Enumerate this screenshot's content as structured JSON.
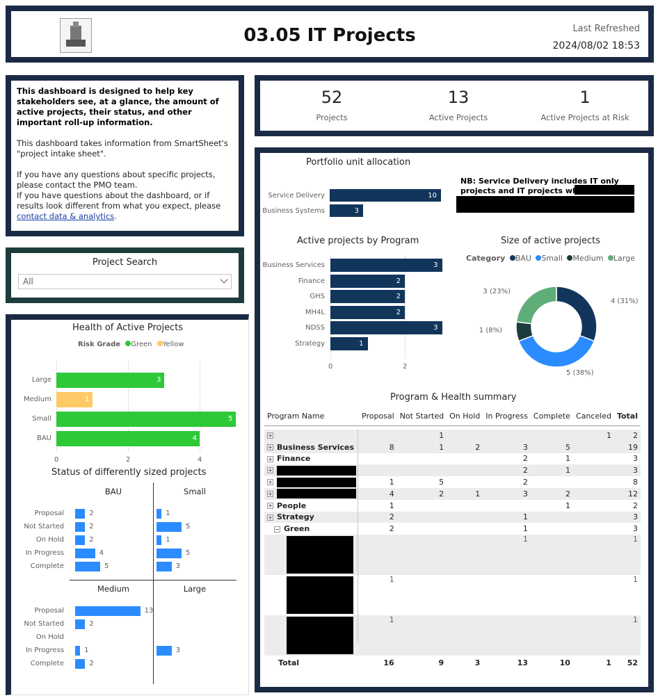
{
  "header": {
    "title": "03.05 IT Projects",
    "last_refreshed_label": "Last Refreshed",
    "last_refreshed_value": "2024/08/02 18:53"
  },
  "info": {
    "bold_text": "This dashboard is designed to help key stakeholders see, at a glance, the amount of active projects, their status, and other important roll-up information.",
    "source_text": "This dashboard takes information from SmartSheet's \"project intake sheet\".",
    "questions_text_1": "If you have any questions about specific projects, please contact the PMO team.",
    "questions_text_2": "If you have questions about the dashboard, or if results look different from what you expect, please ",
    "link_text": "contact data & analytics",
    "period": "."
  },
  "search": {
    "title": "Project Search",
    "value": "All"
  },
  "kpis": [
    {
      "value": "52",
      "label": "Projects"
    },
    {
      "value": "13",
      "label": "Active Projects"
    },
    {
      "value": "1",
      "label": "Active Projects at Risk"
    }
  ],
  "colors": {
    "navy": "#1b2b45",
    "bar_dark": "#12355b",
    "bar_blue": "#2b8cff",
    "green": "#2dc937",
    "yellow": "#ffc966",
    "donut_bau": "#12355b",
    "donut_small": "#2b8cff",
    "donut_medium": "#1e3c3c",
    "donut_large": "#5fae7a"
  },
  "health_chart": {
    "title": "Health of Active Projects",
    "legend_title": "Risk Grade",
    "legend": [
      {
        "name": "Green",
        "color": "#2dc937"
      },
      {
        "name": "Yellow",
        "color": "#ffc966"
      }
    ],
    "categories": [
      "Large",
      "Medium",
      "Small",
      "BAU"
    ],
    "values": [
      3,
      1,
      5,
      4
    ],
    "colors": [
      "#2dc937",
      "#ffc966",
      "#2dc937",
      "#2dc937"
    ],
    "ticks": [
      "0",
      "2",
      "4"
    ]
  },
  "status_chart": {
    "title": "Status of differently sized projects",
    "statuses": [
      "Proposal",
      "Not Started",
      "On Hold",
      "In Progress",
      "Complete"
    ],
    "panels": [
      {
        "name": "BAU",
        "values": [
          2,
          2,
          2,
          4,
          5
        ]
      },
      {
        "name": "Small",
        "values": [
          1,
          5,
          1,
          5,
          3
        ]
      },
      {
        "name": "Medium",
        "values": [
          13,
          2,
          null,
          1,
          2
        ]
      },
      {
        "name": "Large",
        "values": [
          null,
          null,
          null,
          3,
          null
        ]
      }
    ]
  },
  "portfolio_chart": {
    "title": "Portfolio unit allocation",
    "categories": [
      "Service Delivery",
      "Business Systems"
    ],
    "values": [
      10,
      3
    ],
    "note": "NB: Service Delivery includes IT only projects and IT projects which support"
  },
  "program_chart": {
    "title": "Active projects by Program",
    "categories": [
      "Business Services",
      "Finance",
      "GHS",
      "MH4L",
      "NDSS",
      "Strategy"
    ],
    "values": [
      3,
      2,
      2,
      2,
      3,
      1
    ],
    "ticks": [
      "0",
      "2"
    ]
  },
  "donut_chart": {
    "title": "Size of active projects",
    "legend_title": "Category",
    "legend": [
      "BAU",
      "Small",
      "Medium",
      "Large"
    ],
    "slices": [
      {
        "name": "BAU",
        "value": 4,
        "label": "4 (31%)"
      },
      {
        "name": "Small",
        "value": 5,
        "label": "5 (38%)"
      },
      {
        "name": "Medium",
        "value": 1,
        "label": "1 (8%)"
      },
      {
        "name": "Large",
        "value": 3,
        "label": "3 (23%)"
      }
    ]
  },
  "matrix": {
    "title": "Program & Health summary",
    "columns": [
      "Program Name",
      "Proposal",
      "Not Started",
      "On Hold",
      "In Progress",
      "Complete",
      "Canceled",
      "Total"
    ],
    "rows": [
      {
        "name": "",
        "cells": [
          "",
          "1",
          "",
          "",
          "",
          "1",
          "2"
        ],
        "type": "group",
        "redact": false
      },
      {
        "name": "Business Services",
        "cells": [
          "8",
          "1",
          "2",
          "3",
          "5",
          "",
          "19"
        ],
        "type": "group",
        "redact": false
      },
      {
        "name": "Finance",
        "cells": [
          "",
          "",
          "",
          "2",
          "1",
          "",
          "3"
        ],
        "type": "group",
        "redact": false
      },
      {
        "name": "",
        "cells": [
          "",
          "",
          "",
          "2",
          "1",
          "",
          "3"
        ],
        "type": "group",
        "redact": true
      },
      {
        "name": "",
        "cells": [
          "1",
          "5",
          "",
          "2",
          "",
          "",
          "8"
        ],
        "type": "group",
        "redact": true
      },
      {
        "name": "",
        "cells": [
          "4",
          "2",
          "1",
          "3",
          "2",
          "",
          "12"
        ],
        "type": "group",
        "redact": true
      },
      {
        "name": "People",
        "cells": [
          "1",
          "",
          "",
          "",
          "1",
          "",
          "2"
        ],
        "type": "group",
        "redact": false
      },
      {
        "name": "Strategy",
        "cells": [
          "2",
          "",
          "",
          "1",
          "",
          "",
          "3"
        ],
        "type": "group",
        "redact": false
      },
      {
        "name": "Green",
        "cells": [
          "2",
          "",
          "",
          "1",
          "",
          "",
          "3"
        ],
        "type": "sub",
        "redact": false
      },
      {
        "name": "",
        "cells": [
          "",
          "",
          "",
          "1",
          "",
          "",
          "1"
        ],
        "type": "leaf",
        "redact": true
      },
      {
        "name": "",
        "cells": [
          "1",
          "",
          "",
          "",
          "",
          "",
          "1"
        ],
        "type": "leaf",
        "redact": true
      },
      {
        "name": "",
        "cells": [
          "1",
          "",
          "",
          "",
          "",
          "",
          "1"
        ],
        "type": "leaf",
        "redact": true
      }
    ],
    "total_label": "Total",
    "totals": [
      "16",
      "9",
      "3",
      "13",
      "10",
      "1",
      "52"
    ]
  }
}
